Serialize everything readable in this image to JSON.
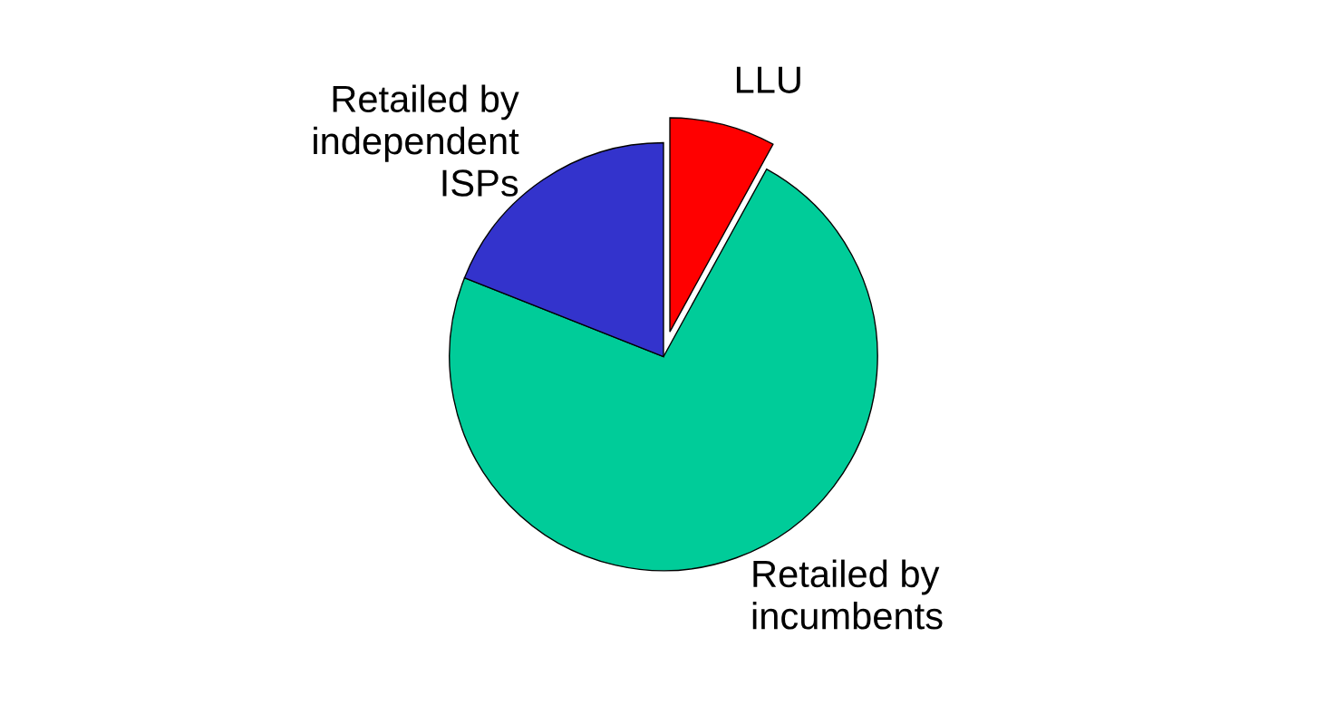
{
  "chart_data": {
    "type": "pie",
    "categories": [
      "LLU",
      "Retailed by\nincumbents",
      "Retailed by\nindependent\nISPs"
    ],
    "values": [
      8,
      73,
      19
    ],
    "colors": [
      "#ff0000",
      "#00cc99",
      "#3333cc"
    ]
  }
}
